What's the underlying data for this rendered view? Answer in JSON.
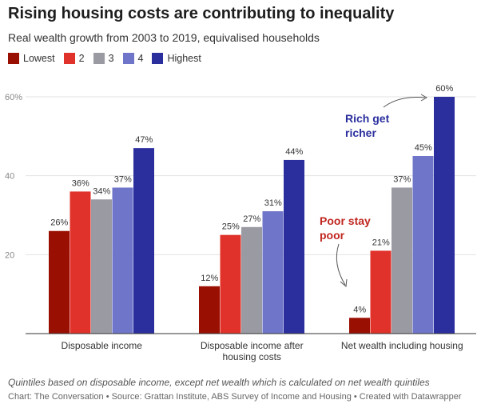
{
  "title": "Rising housing costs are contributing to inequality",
  "subtitle": "Real wealth growth from 2003 to 2019, equivalised households",
  "footnote": "Quintiles based on disposable income, except net wealth which is calculated on net wealth quintiles",
  "credit": "Chart: The Conversation • Source: Grattan Institute, ABS Survey of Income and Housing • Created with Datawrapper",
  "colors": [
    "#990f02",
    "#e0312a",
    "#9a9aa3",
    "#6f76c9",
    "#2b2f9e"
  ],
  "annotation_colors": {
    "rich": "#2b2f9e",
    "poor": "#c0261f"
  },
  "chart_data": {
    "type": "bar",
    "title": "Rising housing costs are contributing to inequality",
    "subtitle": "Real wealth growth from 2003 to 2019, equivalised households",
    "categories": [
      [
        "Disposable income"
      ],
      [
        "Disposable income after",
        "housing costs"
      ],
      [
        "Net wealth including housing"
      ]
    ],
    "series": [
      {
        "name": "Lowest",
        "values": [
          26,
          12,
          4
        ]
      },
      {
        "name": "2",
        "values": [
          36,
          25,
          21
        ]
      },
      {
        "name": "3",
        "values": [
          34,
          27,
          37
        ]
      },
      {
        "name": "4",
        "values": [
          37,
          31,
          45
        ]
      },
      {
        "name": "Highest",
        "values": [
          47,
          44,
          60
        ]
      }
    ],
    "value_suffix": "%",
    "ylim": [
      0,
      60
    ],
    "yticks": [
      {
        "value": 20,
        "label": "20"
      },
      {
        "value": 40,
        "label": "40"
      },
      {
        "value": 60,
        "label": "60%"
      }
    ],
    "grid": true,
    "legend_position": "top-left",
    "annotations": [
      {
        "lines": [
          "Rich get",
          "richer"
        ],
        "target": "Highest, Net wealth including housing"
      },
      {
        "lines": [
          "Poor stay",
          "poor"
        ],
        "target": "Lowest, Net wealth including housing"
      }
    ]
  }
}
